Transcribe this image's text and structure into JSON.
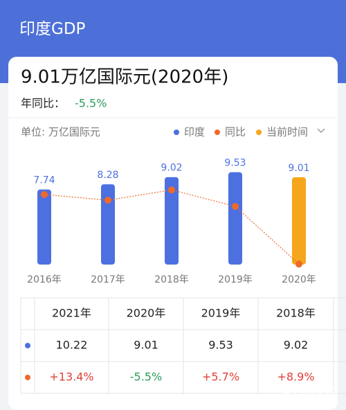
{
  "header": {
    "title": "印度GDP"
  },
  "summary": {
    "headline": "9.01万亿国际元(2020年)",
    "yoy_label": "年同比：",
    "yoy_value": "-5.5%"
  },
  "chart_data": {
    "type": "bar",
    "unit_label": "单位: 万亿国际元",
    "categories": [
      "2016年",
      "2017年",
      "2018年",
      "2019年",
      "2020年"
    ],
    "series": [
      {
        "name": "印度",
        "color": "#4d70e0",
        "values": [
          7.74,
          8.28,
          9.02,
          9.53,
          9.01
        ]
      },
      {
        "name": "同比",
        "type": "line",
        "axis": "y2",
        "color": "#ee6a2a",
        "values": [
          8.0,
          6.9,
          8.9,
          5.7,
          -5.5
        ]
      }
    ],
    "highlight": {
      "name": "当前时间",
      "color": "#f6a61c",
      "category": "2020年"
    },
    "ylim": [
      0,
      10
    ],
    "y2lim": [
      -6,
      10
    ]
  },
  "table": {
    "header": [
      "2021年",
      "2020年",
      "2019年",
      "2018年"
    ],
    "rows": [
      [
        "10.22",
        "9.01",
        "9.53",
        "9.02"
      ],
      [
        "+13.4%",
        "-5.5%",
        "+5.7%",
        "+8.9%"
      ]
    ]
  },
  "watermark": "知乎 @六月双"
}
